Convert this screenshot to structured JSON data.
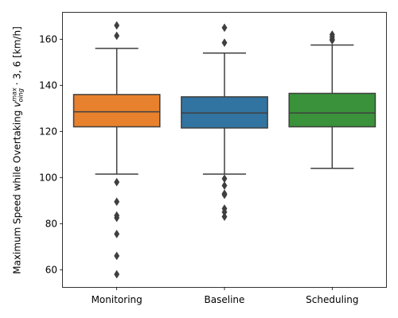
{
  "chart_data": {
    "type": "boxplot",
    "title": "",
    "xlabel": "",
    "ylabel": {
      "prefix": "Maximum Speed while Overtaking ",
      "symbol": "v",
      "subscript": "oing",
      "superscript": "max",
      "suffix": " · 3, 6 [km/h]"
    },
    "ylim": [
      52.5,
      171.5
    ],
    "yticks": [
      60,
      80,
      100,
      120,
      140,
      160
    ],
    "categories": [
      "Monitoring",
      "Baseline",
      "Scheduling"
    ],
    "series": [
      {
        "category": "Monitoring",
        "color": "#e8812d",
        "whisker_low": 101.5,
        "q1": 122,
        "median": 128.5,
        "q3": 136,
        "whisker_high": 156,
        "outliers": [
          166,
          161.5,
          98,
          89.5,
          83.5,
          82.5,
          75.5,
          66,
          58
        ]
      },
      {
        "category": "Baseline",
        "color": "#3274a1",
        "whisker_low": 101.5,
        "q1": 121.5,
        "median": 128,
        "q3": 135,
        "whisker_high": 154,
        "outliers": [
          165,
          158.5,
          99.5,
          96.5,
          93,
          92.5,
          86.5,
          85,
          83
        ]
      },
      {
        "category": "Scheduling",
        "color": "#3a923a",
        "whisker_low": 104,
        "q1": 122,
        "median": 128,
        "q3": 136.5,
        "whisker_high": 157.5,
        "outliers": [
          162,
          161,
          160,
          159.5
        ]
      }
    ]
  }
}
